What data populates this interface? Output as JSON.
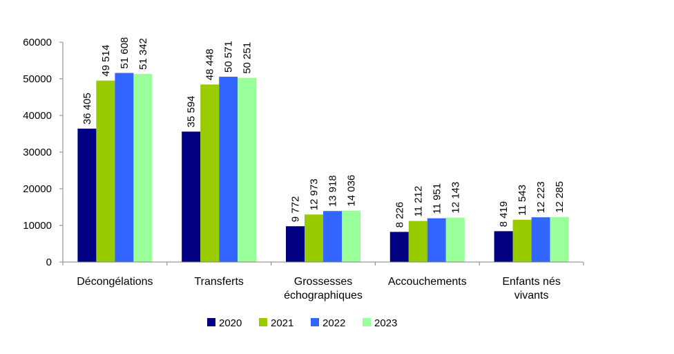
{
  "chart_data": {
    "type": "bar",
    "categories": [
      [
        "Décongélations"
      ],
      [
        "Transferts"
      ],
      [
        "Grossesses",
        "échographiques"
      ],
      [
        "Accouchements"
      ],
      [
        "Enfants nés",
        "vivants"
      ]
    ],
    "series": [
      {
        "name": "2020",
        "color": "#000080",
        "values": [
          36405,
          35594,
          9772,
          8226,
          8419
        ],
        "labels": [
          "36 405",
          "35 594",
          "9 772",
          "8 226",
          "8 419"
        ]
      },
      {
        "name": "2021",
        "color": "#99CC00",
        "values": [
          49514,
          48448,
          12973,
          11212,
          11543
        ],
        "labels": [
          "49 514",
          "48 448",
          "12 973",
          "11 212",
          "11 543"
        ]
      },
      {
        "name": "2022",
        "color": "#3366FF",
        "values": [
          51608,
          50571,
          13918,
          11951,
          12223
        ],
        "labels": [
          "51 608",
          "50 571",
          "13 918",
          "11 951",
          "12 223"
        ]
      },
      {
        "name": "2023",
        "color": "#99FF99",
        "values": [
          51342,
          50251,
          14036,
          12143,
          12285
        ],
        "labels": [
          "51 342",
          "50 251",
          "14 036",
          "12 143",
          "12 285"
        ]
      }
    ],
    "y_ticks": [
      "0",
      "10000",
      "20000",
      "30000",
      "40000",
      "50000",
      "60000"
    ],
    "ylim": [
      0,
      60000
    ],
    "grid": false,
    "legend_position": "bottom"
  }
}
